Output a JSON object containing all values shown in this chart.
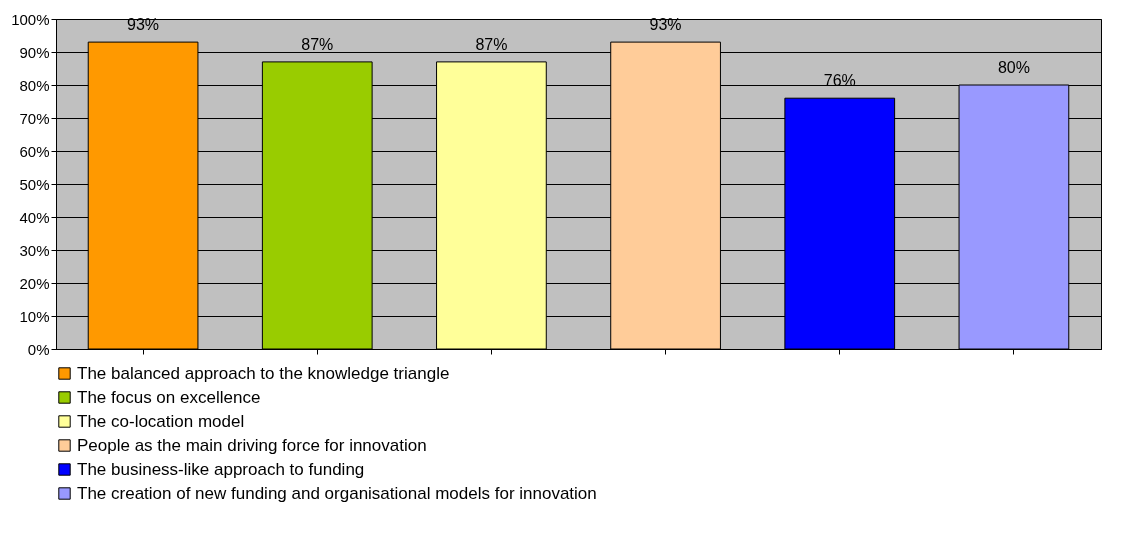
{
  "chart_data": {
    "type": "bar",
    "categories": [
      null,
      null,
      null,
      null,
      null,
      null
    ],
    "series": [
      {
        "name": "The balanced approach to the knowledge triangle",
        "color": "#ff9900",
        "values": [
          93,
          null,
          null,
          null,
          null,
          null
        ],
        "value_labels": [
          "93%",
          null,
          null,
          null,
          null,
          null
        ]
      },
      {
        "name": "The focus on excellence",
        "color": "#99cc00",
        "values": [
          null,
          87,
          null,
          null,
          null,
          null
        ],
        "value_labels": [
          null,
          "87%",
          null,
          null,
          null,
          null
        ]
      },
      {
        "name": "The co-location model",
        "color": "#ffff99",
        "values": [
          null,
          null,
          87,
          null,
          null,
          null
        ],
        "value_labels": [
          null,
          null,
          "87%",
          null,
          null,
          null
        ]
      },
      {
        "name": "People as the main driving force for innovation",
        "color": "#ffcc99",
        "values": [
          null,
          null,
          null,
          93,
          null,
          null
        ],
        "value_labels": [
          null,
          null,
          null,
          "93%",
          null,
          null
        ]
      },
      {
        "name": "The business-like approach to funding",
        "color": "#0000ff",
        "values": [
          null,
          null,
          null,
          null,
          76,
          null
        ],
        "value_labels": [
          null,
          null,
          null,
          null,
          "76%",
          null
        ]
      },
      {
        "name": "The creation of new funding and organisational models for innovation",
        "color": "#9999ff",
        "values": [
          null,
          null,
          null,
          null,
          null,
          80
        ],
        "value_labels": [
          null,
          null,
          null,
          null,
          null,
          "80%"
        ]
      }
    ],
    "ylim": [
      0,
      100
    ],
    "yticks": [
      {
        "value": 0,
        "label": "0%"
      },
      {
        "value": 10,
        "label": "10%"
      },
      {
        "value": 20,
        "label": "20%"
      },
      {
        "value": 30,
        "label": "30%"
      },
      {
        "value": 40,
        "label": "40%"
      },
      {
        "value": 50,
        "label": "50%"
      },
      {
        "value": 60,
        "label": "60%"
      },
      {
        "value": 70,
        "label": "70%"
      },
      {
        "value": 80,
        "label": "80%"
      },
      {
        "value": 90,
        "label": "90%"
      },
      {
        "value": 100,
        "label": "100%"
      }
    ],
    "grid": "y",
    "legend": "bottom"
  }
}
